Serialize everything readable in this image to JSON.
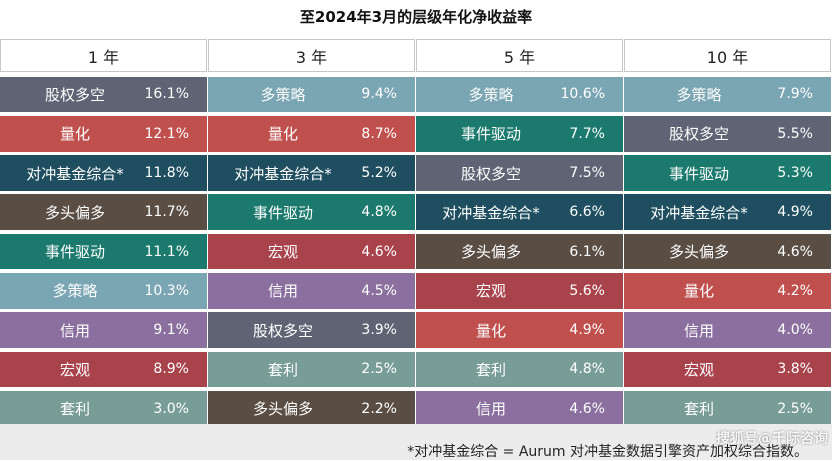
{
  "chart_data": {
    "type": "table",
    "title": "至2024年3月的层级年化净收益率",
    "columns": [
      {
        "header": "1 年",
        "rows": [
          {
            "label": "股权多空",
            "value": "16.1%",
            "color": "#5e6474"
          },
          {
            "label": "量化",
            "value": "12.1%",
            "color": "#c0504d"
          },
          {
            "label": "对冲基金综合*",
            "value": "11.8%",
            "color": "#1e4e5f"
          },
          {
            "label": "多头偏多",
            "value": "11.7%",
            "color": "#5a4e44"
          },
          {
            "label": "事件驱动",
            "value": "11.1%",
            "color": "#1b7a6d"
          },
          {
            "label": "多策略",
            "value": "10.3%",
            "color": "#7aa5b3"
          },
          {
            "label": "信用",
            "value": "9.1%",
            "color": "#8b6f9e"
          },
          {
            "label": "宏观",
            "value": "8.9%",
            "color": "#a8434c"
          },
          {
            "label": "套利",
            "value": "3.0%",
            "color": "#789d97"
          }
        ]
      },
      {
        "header": "3 年",
        "rows": [
          {
            "label": "多策略",
            "value": "9.4%",
            "color": "#7aa5b3"
          },
          {
            "label": "量化",
            "value": "8.7%",
            "color": "#c0504d"
          },
          {
            "label": "对冲基金综合*",
            "value": "5.2%",
            "color": "#1e4e5f"
          },
          {
            "label": "事件驱动",
            "value": "4.8%",
            "color": "#1b7a6d"
          },
          {
            "label": "宏观",
            "value": "4.6%",
            "color": "#a8434c"
          },
          {
            "label": "信用",
            "value": "4.5%",
            "color": "#8b6f9e"
          },
          {
            "label": "股权多空",
            "value": "3.9%",
            "color": "#5e6474"
          },
          {
            "label": "套利",
            "value": "2.5%",
            "color": "#789d97"
          },
          {
            "label": "多头偏多",
            "value": "2.2%",
            "color": "#5a4e44"
          }
        ]
      },
      {
        "header": "5 年",
        "rows": [
          {
            "label": "多策略",
            "value": "10.6%",
            "color": "#7aa5b3"
          },
          {
            "label": "事件驱动",
            "value": "7.7%",
            "color": "#1b7a6d"
          },
          {
            "label": "股权多空",
            "value": "7.5%",
            "color": "#5e6474"
          },
          {
            "label": "对冲基金综合*",
            "value": "6.6%",
            "color": "#1e4e5f"
          },
          {
            "label": "多头偏多",
            "value": "6.1%",
            "color": "#5a4e44"
          },
          {
            "label": "宏观",
            "value": "5.6%",
            "color": "#a8434c"
          },
          {
            "label": "量化",
            "value": "4.9%",
            "color": "#c0504d"
          },
          {
            "label": "套利",
            "value": "4.8%",
            "color": "#789d97"
          },
          {
            "label": "信用",
            "value": "4.6%",
            "color": "#8b6f9e"
          }
        ]
      },
      {
        "header": "10 年",
        "rows": [
          {
            "label": "多策略",
            "value": "7.9%",
            "color": "#7aa5b3"
          },
          {
            "label": "股权多空",
            "value": "5.5%",
            "color": "#5e6474"
          },
          {
            "label": "事件驱动",
            "value": "5.3%",
            "color": "#1b7a6d"
          },
          {
            "label": "对冲基金综合*",
            "value": "4.9%",
            "color": "#1e4e5f"
          },
          {
            "label": "多头偏多",
            "value": "4.6%",
            "color": "#5a4e44"
          },
          {
            "label": "量化",
            "value": "4.2%",
            "color": "#c0504d"
          },
          {
            "label": "信用",
            "value": "4.0%",
            "color": "#8b6f9e"
          },
          {
            "label": "宏观",
            "value": "3.8%",
            "color": "#a8434c"
          },
          {
            "label": "套利",
            "value": "2.5%",
            "color": "#789d97"
          }
        ]
      }
    ],
    "footnote": "*对冲基金综合 = Aurum 对冲基金数据引擎资产加权综合指数。"
  },
  "watermark": "搜狐号@千际咨询"
}
